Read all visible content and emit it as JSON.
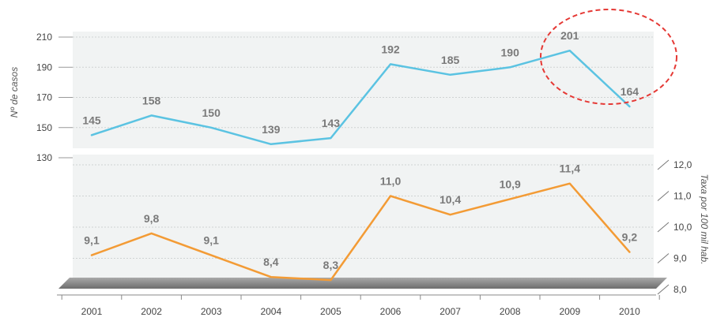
{
  "chart_data": {
    "type": "line",
    "categories": [
      "2001",
      "2002",
      "2003",
      "2004",
      "2005",
      "2006",
      "2007",
      "2008",
      "2009",
      "2010"
    ],
    "series": [
      {
        "values": [
          145,
          158,
          150,
          139,
          143,
          192,
          185,
          190,
          201,
          164
        ],
        "labels": [
          "145",
          "158",
          "150",
          "139",
          "143",
          "192",
          "185",
          "190",
          "201",
          "164"
        ],
        "color": "#5bc3e2",
        "axis": "left"
      },
      {
        "values": [
          9.1,
          9.8,
          9.1,
          8.4,
          8.3,
          11.0,
          10.4,
          10.9,
          11.4,
          9.2
        ],
        "labels": [
          "9,1",
          "9,8",
          "9,1",
          "8,4",
          "8,3",
          "11,0",
          "10,4",
          "10,9",
          "11,4",
          "9,2"
        ],
        "color": "#f39b35",
        "axis": "right"
      }
    ],
    "ylabel": "Nº de casos",
    "ylim": [
      130,
      210
    ],
    "yticks": [
      "130",
      "150",
      "170",
      "190",
      "210"
    ],
    "y2label": "Taxa por 100 mil hab.",
    "y2lim": [
      8.0,
      12.0
    ],
    "y2ticks": [
      "8,0",
      "9,0",
      "10,0",
      "11,0",
      "12,0"
    ],
    "grid": true,
    "annotation": {
      "type": "dashed-ellipse",
      "color": "#e53935",
      "highlights": [
        "2009",
        "2010"
      ]
    }
  }
}
